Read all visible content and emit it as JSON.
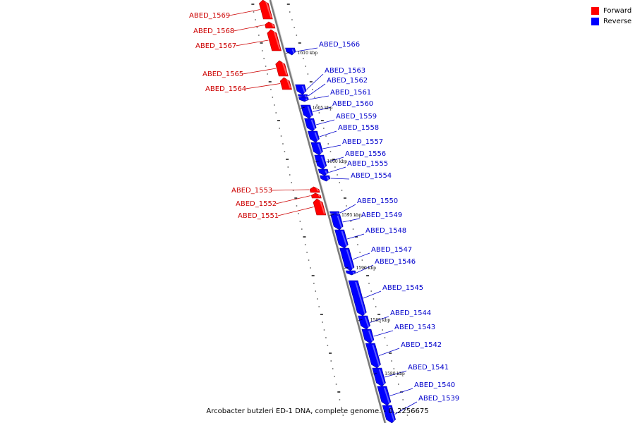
{
  "colors": {
    "forward": "#ff0000",
    "reverse": "#0000ff",
    "forward_label": "#cc0000",
    "reverse_label": "#0000cc",
    "backbone": "#888888"
  },
  "legend": {
    "forward_label": "Forward",
    "reverse_label": "Reverse"
  },
  "caption": "Arcobacter butzleri ED-1 DNA, complete genome. - 0..2256675",
  "genes_forward": [
    {
      "name": "ABED_1569"
    },
    {
      "name": "ABED_1568"
    },
    {
      "name": "ABED_1567"
    },
    {
      "name": "ABED_1565"
    },
    {
      "name": "ABED_1564"
    },
    {
      "name": "ABED_1553"
    },
    {
      "name": "ABED_1552"
    },
    {
      "name": "ABED_1551"
    }
  ],
  "genes_reverse": [
    {
      "name": "ABED_1566"
    },
    {
      "name": "ABED_1563"
    },
    {
      "name": "ABED_1562"
    },
    {
      "name": "ABED_1561"
    },
    {
      "name": "ABED_1560"
    },
    {
      "name": "ABED_1559"
    },
    {
      "name": "ABED_1558"
    },
    {
      "name": "ABED_1557"
    },
    {
      "name": "ABED_1556"
    },
    {
      "name": "ABED_1555"
    },
    {
      "name": "ABED_1554"
    },
    {
      "name": "ABED_1550"
    },
    {
      "name": "ABED_1549"
    },
    {
      "name": "ABED_1548"
    },
    {
      "name": "ABED_1547"
    },
    {
      "name": "ABED_1546"
    },
    {
      "name": "ABED_1545"
    },
    {
      "name": "ABED_1544"
    },
    {
      "name": "ABED_1543"
    },
    {
      "name": "ABED_1542"
    },
    {
      "name": "ABED_1541"
    },
    {
      "name": "ABED_1540"
    },
    {
      "name": "ABED_1539"
    }
  ],
  "ticks": [
    "1610 kbp",
    "1605 kbp",
    "1600 kbp",
    "1595 kbp",
    "1590 kbp",
    "1585 kbp",
    "1580 kbp"
  ]
}
